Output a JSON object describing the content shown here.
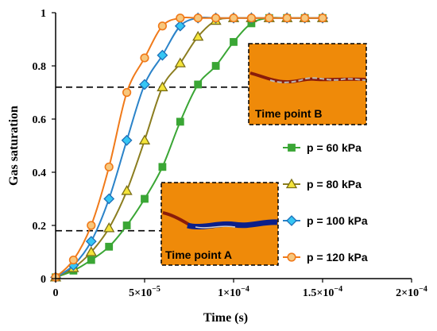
{
  "chart_data": {
    "type": "line",
    "xlabel": "Time (s)",
    "ylabel": "Gas saturation",
    "xlim": [
      0,
      0.0002
    ],
    "ylim": [
      0,
      1
    ],
    "x_ticks": [
      0,
      5e-05,
      0.0001,
      0.00015,
      0.0002
    ],
    "x_tick_labels": [
      {
        "mant": "0",
        "exp": ""
      },
      {
        "mant": "5×10",
        "exp": "−5"
      },
      {
        "mant": "1×10",
        "exp": "−4"
      },
      {
        "mant": "1.5×10",
        "exp": "−4"
      },
      {
        "mant": "2×10",
        "exp": "−4"
      }
    ],
    "y_ticks": [
      0,
      0.2,
      0.4,
      0.6,
      0.8,
      1
    ],
    "y_tick_labels": [
      "0",
      "0.2",
      "0.4",
      "0.6",
      "0.8",
      "1"
    ],
    "grid": false,
    "legend_position": "right",
    "reference_lines": [
      0.18,
      0.72
    ],
    "series": [
      {
        "name": "p = 60 kPa",
        "color": "#3aa635",
        "marker": "square",
        "x": [
          0,
          1e-05,
          2e-05,
          3e-05,
          4e-05,
          5e-05,
          6e-05,
          7e-05,
          8e-05,
          9e-05,
          0.0001,
          0.00011,
          0.00012,
          0.00013,
          0.00014,
          0.00015
        ],
        "y": [
          0.005,
          0.03,
          0.07,
          0.12,
          0.2,
          0.3,
          0.42,
          0.59,
          0.73,
          0.8,
          0.89,
          0.96,
          0.98,
          0.98,
          0.98,
          0.98
        ]
      },
      {
        "name": "p = 80 kPa",
        "color": "#8b7d1f",
        "marker": "triangle",
        "x": [
          0,
          1e-05,
          2e-05,
          3e-05,
          4e-05,
          5e-05,
          6e-05,
          7e-05,
          8e-05,
          9e-05,
          0.0001,
          0.00011,
          0.00012,
          0.00013,
          0.00014,
          0.00015
        ],
        "y": [
          0.005,
          0.04,
          0.1,
          0.19,
          0.33,
          0.52,
          0.72,
          0.81,
          0.91,
          0.97,
          0.98,
          0.98,
          0.98,
          0.98,
          0.98,
          0.98
        ]
      },
      {
        "name": "p = 100 kPa",
        "color": "#2b83c9",
        "marker": "diamond",
        "x": [
          0,
          1e-05,
          2e-05,
          3e-05,
          4e-05,
          5e-05,
          6e-05,
          7e-05,
          8e-05,
          9e-05,
          0.0001,
          0.00011,
          0.00012,
          0.00013,
          0.00014,
          0.00015
        ],
        "y": [
          0.005,
          0.05,
          0.14,
          0.3,
          0.52,
          0.73,
          0.84,
          0.95,
          0.98,
          0.98,
          0.98,
          0.98,
          0.98,
          0.98,
          0.98,
          0.98
        ]
      },
      {
        "name": "p = 120 kPa",
        "color": "#f07a1a",
        "marker": "circle",
        "x": [
          0,
          1e-05,
          2e-05,
          3e-05,
          4e-05,
          5e-05,
          6e-05,
          7e-05,
          8e-05,
          9e-05,
          0.0001,
          0.00011,
          0.00012,
          0.00013,
          0.00014,
          0.00015
        ],
        "y": [
          0.005,
          0.07,
          0.2,
          0.42,
          0.7,
          0.83,
          0.95,
          0.98,
          0.98,
          0.98,
          0.98,
          0.98,
          0.98,
          0.98,
          0.98,
          0.98
        ]
      }
    ],
    "insets": [
      {
        "label": "Time point A",
        "dashed_color": "#000000",
        "fill_color": "#ef8a09"
      },
      {
        "label": "Time point B",
        "dashed_color": "#000000",
        "fill_color": "#ef8a09"
      }
    ]
  }
}
